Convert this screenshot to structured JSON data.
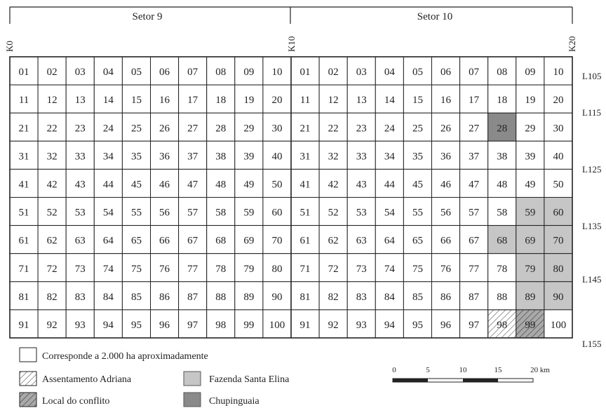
{
  "sectors": [
    {
      "label": "Setor 9"
    },
    {
      "label": "Setor 10"
    }
  ],
  "k_labels": [
    "K0",
    "K10",
    "K20"
  ],
  "l_labels": [
    "L105",
    "L115",
    "L125",
    "L135",
    "L145",
    "L155"
  ],
  "grid": {
    "rows": 10,
    "cols": 20,
    "sector9_cells": [
      "01",
      "02",
      "03",
      "04",
      "05",
      "06",
      "07",
      "08",
      "09",
      "10",
      "11",
      "12",
      "13",
      "14",
      "15",
      "16",
      "17",
      "18",
      "19",
      "20",
      "21",
      "22",
      "23",
      "24",
      "25",
      "26",
      "27",
      "28",
      "29",
      "30",
      "31",
      "32",
      "33",
      "34",
      "35",
      "36",
      "37",
      "38",
      "39",
      "40",
      "41",
      "42",
      "43",
      "44",
      "45",
      "46",
      "47",
      "48",
      "49",
      "50",
      "51",
      "52",
      "53",
      "54",
      "55",
      "56",
      "57",
      "58",
      "59",
      "60",
      "61",
      "62",
      "63",
      "64",
      "65",
      "66",
      "67",
      "68",
      "69",
      "70",
      "71",
      "72",
      "73",
      "74",
      "75",
      "76",
      "77",
      "78",
      "79",
      "80",
      "81",
      "82",
      "83",
      "84",
      "85",
      "86",
      "87",
      "88",
      "89",
      "90",
      "91",
      "92",
      "93",
      "94",
      "95",
      "96",
      "97",
      "98",
      "99",
      "100"
    ],
    "sector10_cells": [
      "01",
      "02",
      "03",
      "04",
      "05",
      "06",
      "07",
      "08",
      "09",
      "10",
      "11",
      "12",
      "13",
      "14",
      "15",
      "16",
      "17",
      "18",
      "19",
      "20",
      "21",
      "22",
      "23",
      "24",
      "25",
      "26",
      "27",
      "28",
      "29",
      "30",
      "31",
      "32",
      "33",
      "34",
      "35",
      "36",
      "37",
      "38",
      "39",
      "40",
      "41",
      "42",
      "43",
      "44",
      "45",
      "46",
      "47",
      "48",
      "49",
      "50",
      "51",
      "52",
      "53",
      "54",
      "55",
      "56",
      "57",
      "58",
      "59",
      "60",
      "61",
      "62",
      "63",
      "64",
      "65",
      "66",
      "67",
      "68",
      "69",
      "70",
      "71",
      "72",
      "73",
      "74",
      "75",
      "76",
      "77",
      "78",
      "79",
      "80",
      "81",
      "82",
      "83",
      "84",
      "85",
      "86",
      "87",
      "88",
      "89",
      "90",
      "91",
      "92",
      "93",
      "94",
      "95",
      "96",
      "97",
      "98",
      "99",
      "100"
    ]
  },
  "highlights": {
    "fazenda_santa_elina": [
      "59",
      "60",
      "68",
      "69",
      "70",
      "79",
      "80",
      "89",
      "90"
    ],
    "chupinguaia": [
      "28"
    ],
    "assentamento_adriana": [
      "98"
    ],
    "local_do_conflito": [
      "99"
    ]
  },
  "colors": {
    "fazenda": "#c6c6c6",
    "chupinguaia": "#8a8a8a",
    "line": "#222222"
  },
  "legend": {
    "cell_note": "Corresponde a 2.000 ha aproximadamente",
    "assentamento": "Assentamento Adriana",
    "local_conflito": "Local do conflito",
    "fazenda": "Fazenda Santa Elina",
    "chupinguaia": "Chupinguaia"
  },
  "scale": {
    "ticks": [
      "0",
      "5",
      "10",
      "15",
      "20 km"
    ]
  }
}
